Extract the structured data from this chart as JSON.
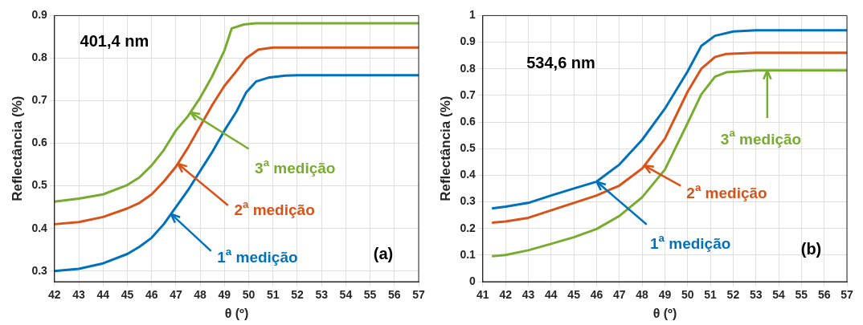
{
  "chart_data": [
    {
      "type": "line",
      "xlabel": "θ (º)",
      "ylabel": "Reflectância (%)",
      "xlim": [
        42,
        57
      ],
      "ylim": [
        0.275,
        0.9
      ],
      "xticks": [
        42,
        43,
        44,
        45,
        46,
        47,
        48,
        49,
        50,
        51,
        52,
        53,
        54,
        55,
        56,
        57
      ],
      "yticks": [
        0.3,
        0.4,
        0.5,
        0.6,
        0.7,
        0.8,
        0.9
      ],
      "grid": true,
      "legend": false,
      "annotations": [
        "401,4 nm",
        "(a)"
      ],
      "series": [
        {
          "name": "1$^{a}$ medição",
          "color": "#0072bd",
          "x": [
            42,
            43,
            44,
            45,
            45.5,
            46,
            46.5,
            47,
            47.5,
            48,
            48.5,
            49,
            49.5,
            49.9,
            50.3,
            50.8,
            51.5,
            52,
            57
          ],
          "values": [
            0.3,
            0.305,
            0.318,
            0.34,
            0.357,
            0.378,
            0.41,
            0.45,
            0.49,
            0.535,
            0.58,
            0.63,
            0.675,
            0.72,
            0.745,
            0.754,
            0.759,
            0.76,
            0.76
          ]
        },
        {
          "name": "2$^{a}$ medição",
          "color": "#d95319",
          "x": [
            42,
            43,
            44,
            45,
            45.5,
            46,
            46.5,
            47,
            47.5,
            48,
            48.5,
            49,
            49.5,
            49.9,
            50.4,
            51,
            57
          ],
          "values": [
            0.41,
            0.415,
            0.427,
            0.447,
            0.46,
            0.48,
            0.51,
            0.545,
            0.59,
            0.64,
            0.69,
            0.735,
            0.77,
            0.8,
            0.82,
            0.825,
            0.825
          ]
        },
        {
          "name": "3$^{a}$ medição",
          "color": "#77ac30",
          "x": [
            42,
            43,
            44,
            45,
            45.5,
            46,
            46.5,
            47,
            47.5,
            48,
            48.5,
            49,
            49.3,
            49.8,
            50.3,
            57
          ],
          "values": [
            0.463,
            0.47,
            0.48,
            0.502,
            0.52,
            0.548,
            0.584,
            0.63,
            0.664,
            0.707,
            0.758,
            0.818,
            0.87,
            0.879,
            0.882,
            0.882
          ]
        }
      ]
    },
    {
      "type": "line",
      "xlabel": "θ (º)",
      "ylabel": "Reflectância (%)",
      "xlim": [
        41,
        57
      ],
      "ylim": [
        0,
        1
      ],
      "xticks": [
        41,
        42,
        43,
        44,
        45,
        46,
        47,
        48,
        49,
        50,
        51,
        52,
        53,
        54,
        55,
        56,
        57
      ],
      "yticks": [
        0,
        0.1,
        0.2,
        0.3,
        0.4,
        0.5,
        0.6,
        0.7,
        0.8,
        0.9,
        1
      ],
      "grid": true,
      "legend": false,
      "annotations": [
        "534,6 nm",
        "(b)"
      ],
      "series": [
        {
          "name": "1$^{a}$ medição",
          "color": "#0072bd",
          "x": [
            41.4,
            42,
            43,
            44,
            45,
            46,
            47,
            48,
            49,
            50,
            50.6,
            51.2,
            52,
            53,
            57
          ],
          "values": [
            0.275,
            0.282,
            0.296,
            0.324,
            0.35,
            0.376,
            0.44,
            0.533,
            0.65,
            0.79,
            0.886,
            0.924,
            0.94,
            0.945,
            0.945
          ]
        },
        {
          "name": "2$^{a}$ medição",
          "color": "#d95319",
          "x": [
            41.4,
            42,
            43,
            44,
            45,
            46,
            47,
            48,
            49,
            50,
            50.6,
            51.2,
            51.7,
            53,
            57
          ],
          "values": [
            0.222,
            0.226,
            0.24,
            0.268,
            0.296,
            0.324,
            0.361,
            0.425,
            0.537,
            0.714,
            0.8,
            0.844,
            0.856,
            0.86,
            0.86
          ]
        },
        {
          "name": "3$^{a}$ medição",
          "color": "#77ac30",
          "x": [
            41.4,
            42,
            43,
            44,
            45,
            46,
            47,
            48,
            49,
            50,
            50.6,
            51.2,
            51.7,
            53,
            57
          ],
          "values": [
            0.096,
            0.1,
            0.118,
            0.142,
            0.167,
            0.198,
            0.247,
            0.317,
            0.421,
            0.596,
            0.704,
            0.77,
            0.787,
            0.794,
            0.794
          ]
        }
      ]
    }
  ]
}
